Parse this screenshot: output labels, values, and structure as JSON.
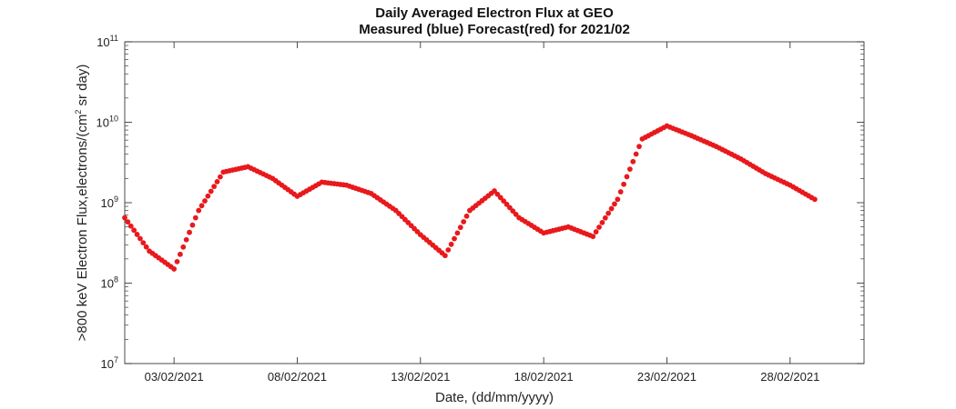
{
  "chart_data": {
    "type": "scatter",
    "title": "Daily Averaged Electron Flux at GEO",
    "subtitle": "Measured (blue) Forecast(red) for 2021/02",
    "xlabel": "Date, (dd/mm/yyyy)",
    "ylabel_main": ">800 keV Electron Flux,electrons/(cm",
    "ylabel_sup": "2",
    "ylabel_tail": " sr day)",
    "x_ticks": [
      "03/02/2021",
      "08/02/2021",
      "13/02/2021",
      "18/02/2021",
      "23/02/2021",
      "28/02/2021"
    ],
    "y_ticks": [
      {
        "base": "10",
        "exp": "7"
      },
      {
        "base": "10",
        "exp": "8"
      },
      {
        "base": "10",
        "exp": "9"
      },
      {
        "base": "10",
        "exp": "10"
      },
      {
        "base": "10",
        "exp": "11"
      }
    ],
    "xlim": [
      "2021-02-01",
      "2021-03-03"
    ],
    "ylim": [
      10000000.0,
      100000000000.0
    ],
    "yscale": "log",
    "grid": false,
    "series": [
      {
        "color": "#e8191c",
        "x": [
          "2021-02-01",
          "2021-02-02",
          "2021-02-03",
          "2021-02-04",
          "2021-02-05",
          "2021-02-06",
          "2021-02-07",
          "2021-02-08",
          "2021-02-09",
          "2021-02-10",
          "2021-02-11",
          "2021-02-12",
          "2021-02-13",
          "2021-02-14",
          "2021-02-15",
          "2021-02-16",
          "2021-02-17",
          "2021-02-18",
          "2021-02-19",
          "2021-02-20",
          "2021-02-21",
          "2021-02-22",
          "2021-02-23",
          "2021-02-24",
          "2021-02-25",
          "2021-02-26",
          "2021-02-27",
          "2021-02-28",
          "2021-03-01"
        ],
        "y": [
          650000000.0,
          250000000.0,
          150000000.0,
          800000000.0,
          2400000000.0,
          2800000000.0,
          2000000000.0,
          1200000000.0,
          1800000000.0,
          1650000000.0,
          1300000000.0,
          800000000.0,
          400000000.0,
          220000000.0,
          800000000.0,
          1400000000.0,
          650000000.0,
          420000000.0,
          500000000.0,
          380000000.0,
          1100000000.0,
          6200000000.0,
          9000000000.0,
          6800000000.0,
          5000000000.0,
          3500000000.0,
          2300000000.0,
          1650000000.0,
          1100000000.0
        ]
      }
    ]
  }
}
